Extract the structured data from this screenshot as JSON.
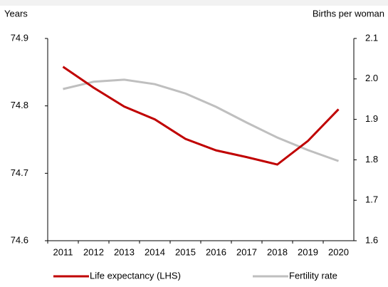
{
  "chart_data": {
    "type": "line",
    "y_label": "Years",
    "y2_label": "Births per woman",
    "categories": [
      "2011",
      "2012",
      "2013",
      "2014",
      "2015",
      "2016",
      "2017",
      "2018",
      "2019",
      "2020"
    ],
    "series": [
      {
        "name": "Life expectancy (LHS)",
        "color": "#c00000",
        "values": [
          74.858,
          74.827,
          74.799,
          74.78,
          74.751,
          74.734,
          74.724,
          74.713,
          74.748,
          74.795
        ]
      },
      {
        "name": "Fertility rate",
        "color": "#bfbfbf",
        "axis": "y2",
        "values": [
          1.975,
          1.993,
          1.998,
          1.987,
          1.964,
          1.931,
          1.892,
          1.855,
          1.824,
          1.797
        ]
      }
    ],
    "ylim": [
      74.6,
      74.9
    ],
    "yticks": [
      74.6,
      74.7,
      74.8,
      74.9
    ],
    "y2lim": [
      1.6,
      2.1
    ],
    "y2ticks": [
      1.6,
      1.7,
      1.8,
      1.9,
      {
        "value": 2,
        "label": "2.0"
      },
      2.1
    ],
    "grid": false
  }
}
